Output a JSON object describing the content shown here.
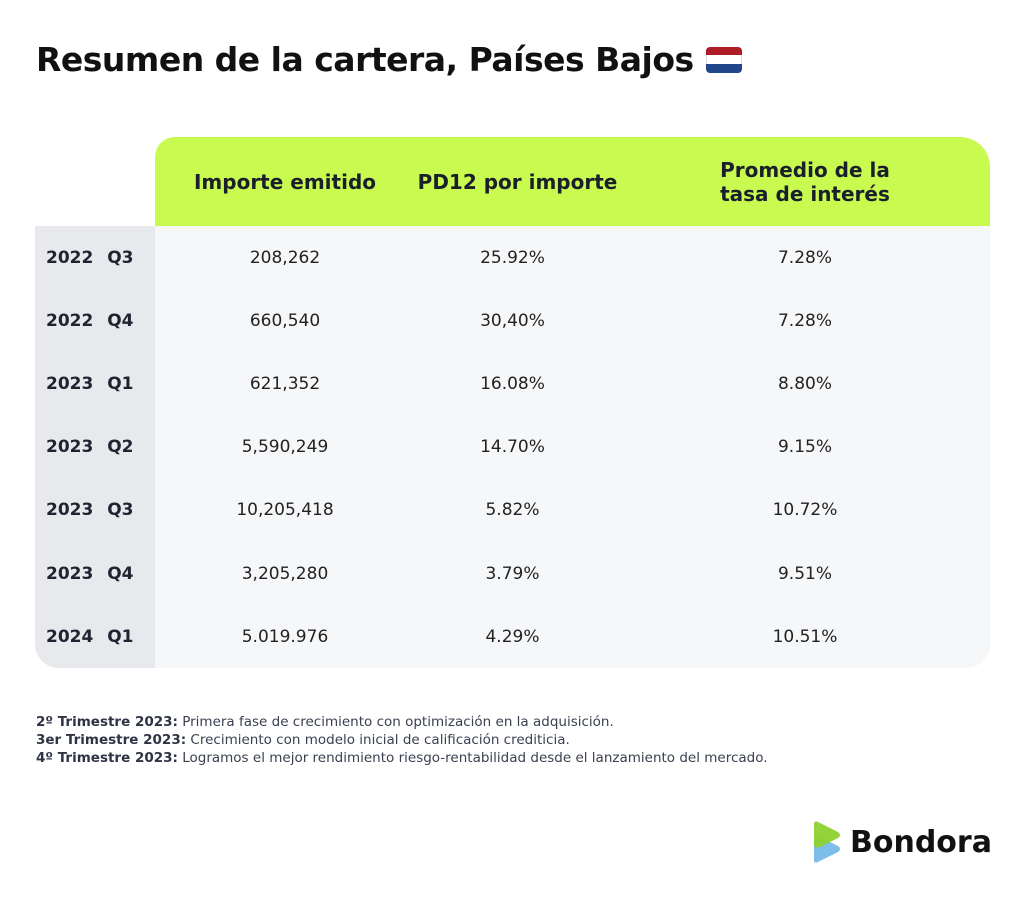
{
  "title": "Resumen de la cartera, Países Bajos",
  "flag_colors": [
    "#ae1c28",
    "#ffffff",
    "#21468b"
  ],
  "headers": [
    "Importe emitido",
    "PD12 por importe",
    "Promedio de la tasa de interés"
  ],
  "rows": [
    {
      "period": "2022 Q3",
      "amount": "208,262",
      "pd12": "25.92%",
      "rate": "7.28%"
    },
    {
      "period": "2022 Q4",
      "amount": "660,540",
      "pd12": "30,40%",
      "rate": "7.28%"
    },
    {
      "period": "2023 Q1",
      "amount": "621,352",
      "pd12": "16.08%",
      "rate": "8.80%"
    },
    {
      "period": "2023 Q2",
      "amount": "5,590,249",
      "pd12": "14.70%",
      "rate": "9.15%"
    },
    {
      "period": "2023 Q3",
      "amount": "10,205,418",
      "pd12": "5.82%",
      "rate": "10.72%"
    },
    {
      "period": "2023 Q4",
      "amount": "3,205,280",
      "pd12": "3.79%",
      "rate": "9.51%"
    },
    {
      "period": "2024 Q1",
      "amount": "5.019.976",
      "pd12": "4.29%",
      "rate": "10.51%"
    }
  ],
  "notes": [
    {
      "label": "2º Trimestre 2023:",
      "text": " Primera fase de crecimiento con optimización en la adquisición."
    },
    {
      "label": "3er Trimestre 2023:",
      "text": " Crecimiento con modelo inicial de calificación crediticia."
    },
    {
      "label": "4º Trimestre 2023:",
      "text": " Logramos el mejor rendimiento riesgo-rentabilidad desde el lanzamiento del mercado."
    }
  ],
  "brand": "Bondora",
  "colors": {
    "header": "#c8fa4f",
    "logo_green": "#8ed22f",
    "logo_blue": "#7cbde9"
  }
}
